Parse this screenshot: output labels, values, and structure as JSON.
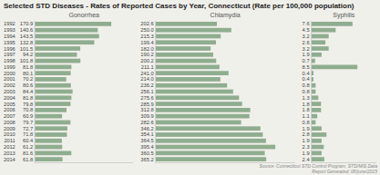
{
  "title": "Selected STD Diseases - Rates of Reported Cases by Year, Connecticut (Rate per 100,000 population)",
  "annotations": [
    "Source: Connecticut STD Control Program, STD/MIS Data\nReport Generated: 08/june/2015"
  ],
  "chart_data": [
    {
      "type": "bar",
      "orientation": "horizontal",
      "title": "Gonorrhea",
      "categories": [
        1992,
        1993,
        1994,
        1995,
        1996,
        1997,
        1998,
        1999,
        2000,
        2001,
        2002,
        2003,
        2004,
        2005,
        2006,
        2007,
        2008,
        2009,
        2010,
        2011,
        2012,
        2013,
        2014
      ],
      "values": [
        170.9,
        140.6,
        143.5,
        132.8,
        101.5,
        94.2,
        101.8,
        81.8,
        80.1,
        70.2,
        80.6,
        84.4,
        81.8,
        79.8,
        70.8,
        60.9,
        79.7,
        72.7,
        71.8,
        60.4,
        61.2,
        81.6,
        61.8
      ],
      "value_labels": [
        "170.9",
        "140.6",
        "143.5",
        "132.8",
        "101.5",
        "94.2",
        "101.8",
        "81.8",
        "80.1",
        "70.2",
        "80.6",
        "84.4",
        "81.8",
        "79.8",
        "70.8",
        "60.9",
        "79.7",
        "72.7",
        "71.8",
        "60.4",
        "61.2",
        "81.6",
        "61.8"
      ],
      "color": "#8fad8f",
      "xlim": [
        0,
        220
      ],
      "data_labels": true,
      "tick_labels": "y"
    },
    {
      "type": "bar",
      "orientation": "horizontal",
      "title": "Chlamydia",
      "categories": [
        1992,
        1993,
        1994,
        1995,
        1996,
        1997,
        1998,
        1999,
        2000,
        2001,
        2002,
        2003,
        2004,
        2005,
        2006,
        2007,
        2008,
        2009,
        2010,
        2011,
        2012,
        2013,
        2014
      ],
      "values": [
        202.6,
        250.0,
        215.3,
        199.4,
        182.0,
        190.2,
        200.2,
        211.1,
        241.0,
        214.0,
        236.2,
        256.1,
        275.6,
        285.9,
        312.8,
        309.9,
        282.6,
        346.2,
        354.1,
        364.5,
        395.4,
        360.5,
        365.2
      ],
      "value_labels": [
        "202.6",
        "250.0",
        "215.3",
        "199.4",
        "182.0",
        "190.2",
        "200.2",
        "211.1",
        "241.0",
        "214.0",
        "236.2",
        "256.1",
        "275.6",
        "285.9",
        "312.8",
        "309.9",
        "282.6",
        "346.2",
        "354.1",
        "364.5",
        "395.4",
        "360.5",
        "365.2"
      ],
      "color": "#8fad8f",
      "xlim": [
        0,
        460
      ],
      "data_labels": true,
      "tick_labels": false
    },
    {
      "type": "bar",
      "orientation": "horizontal",
      "title": "Syphilis",
      "categories": [
        1992,
        1993,
        1994,
        1995,
        1996,
        1997,
        1998,
        1999,
        2000,
        2001,
        2002,
        2003,
        2004,
        2005,
        2006,
        2007,
        2008,
        2009,
        2010,
        2011,
        2012,
        2013,
        2014
      ],
      "values": [
        7.6,
        4.5,
        3.2,
        2.6,
        3.2,
        1.9,
        0.7,
        8.5,
        0.4,
        0.4,
        0.8,
        0.8,
        1.3,
        1.8,
        1.8,
        1.1,
        0.8,
        1.9,
        2.8,
        1.9,
        2.3,
        1.9,
        2.4
      ],
      "value_labels": [
        "7.6",
        "4.5",
        "3.2",
        "2.6",
        "3.2",
        "1.9",
        "0.7",
        "8.5",
        "0.4",
        "0.4",
        "0.8",
        "0.8",
        "1.3",
        "1.8",
        "1.8",
        "1.1",
        "0.8",
        "1.9",
        "2.8",
        "1.9",
        "2.3",
        "1.9",
        "2.4"
      ],
      "color": "#8fad8f",
      "xlim": [
        0,
        12
      ],
      "data_labels": true,
      "tick_labels": false
    }
  ]
}
